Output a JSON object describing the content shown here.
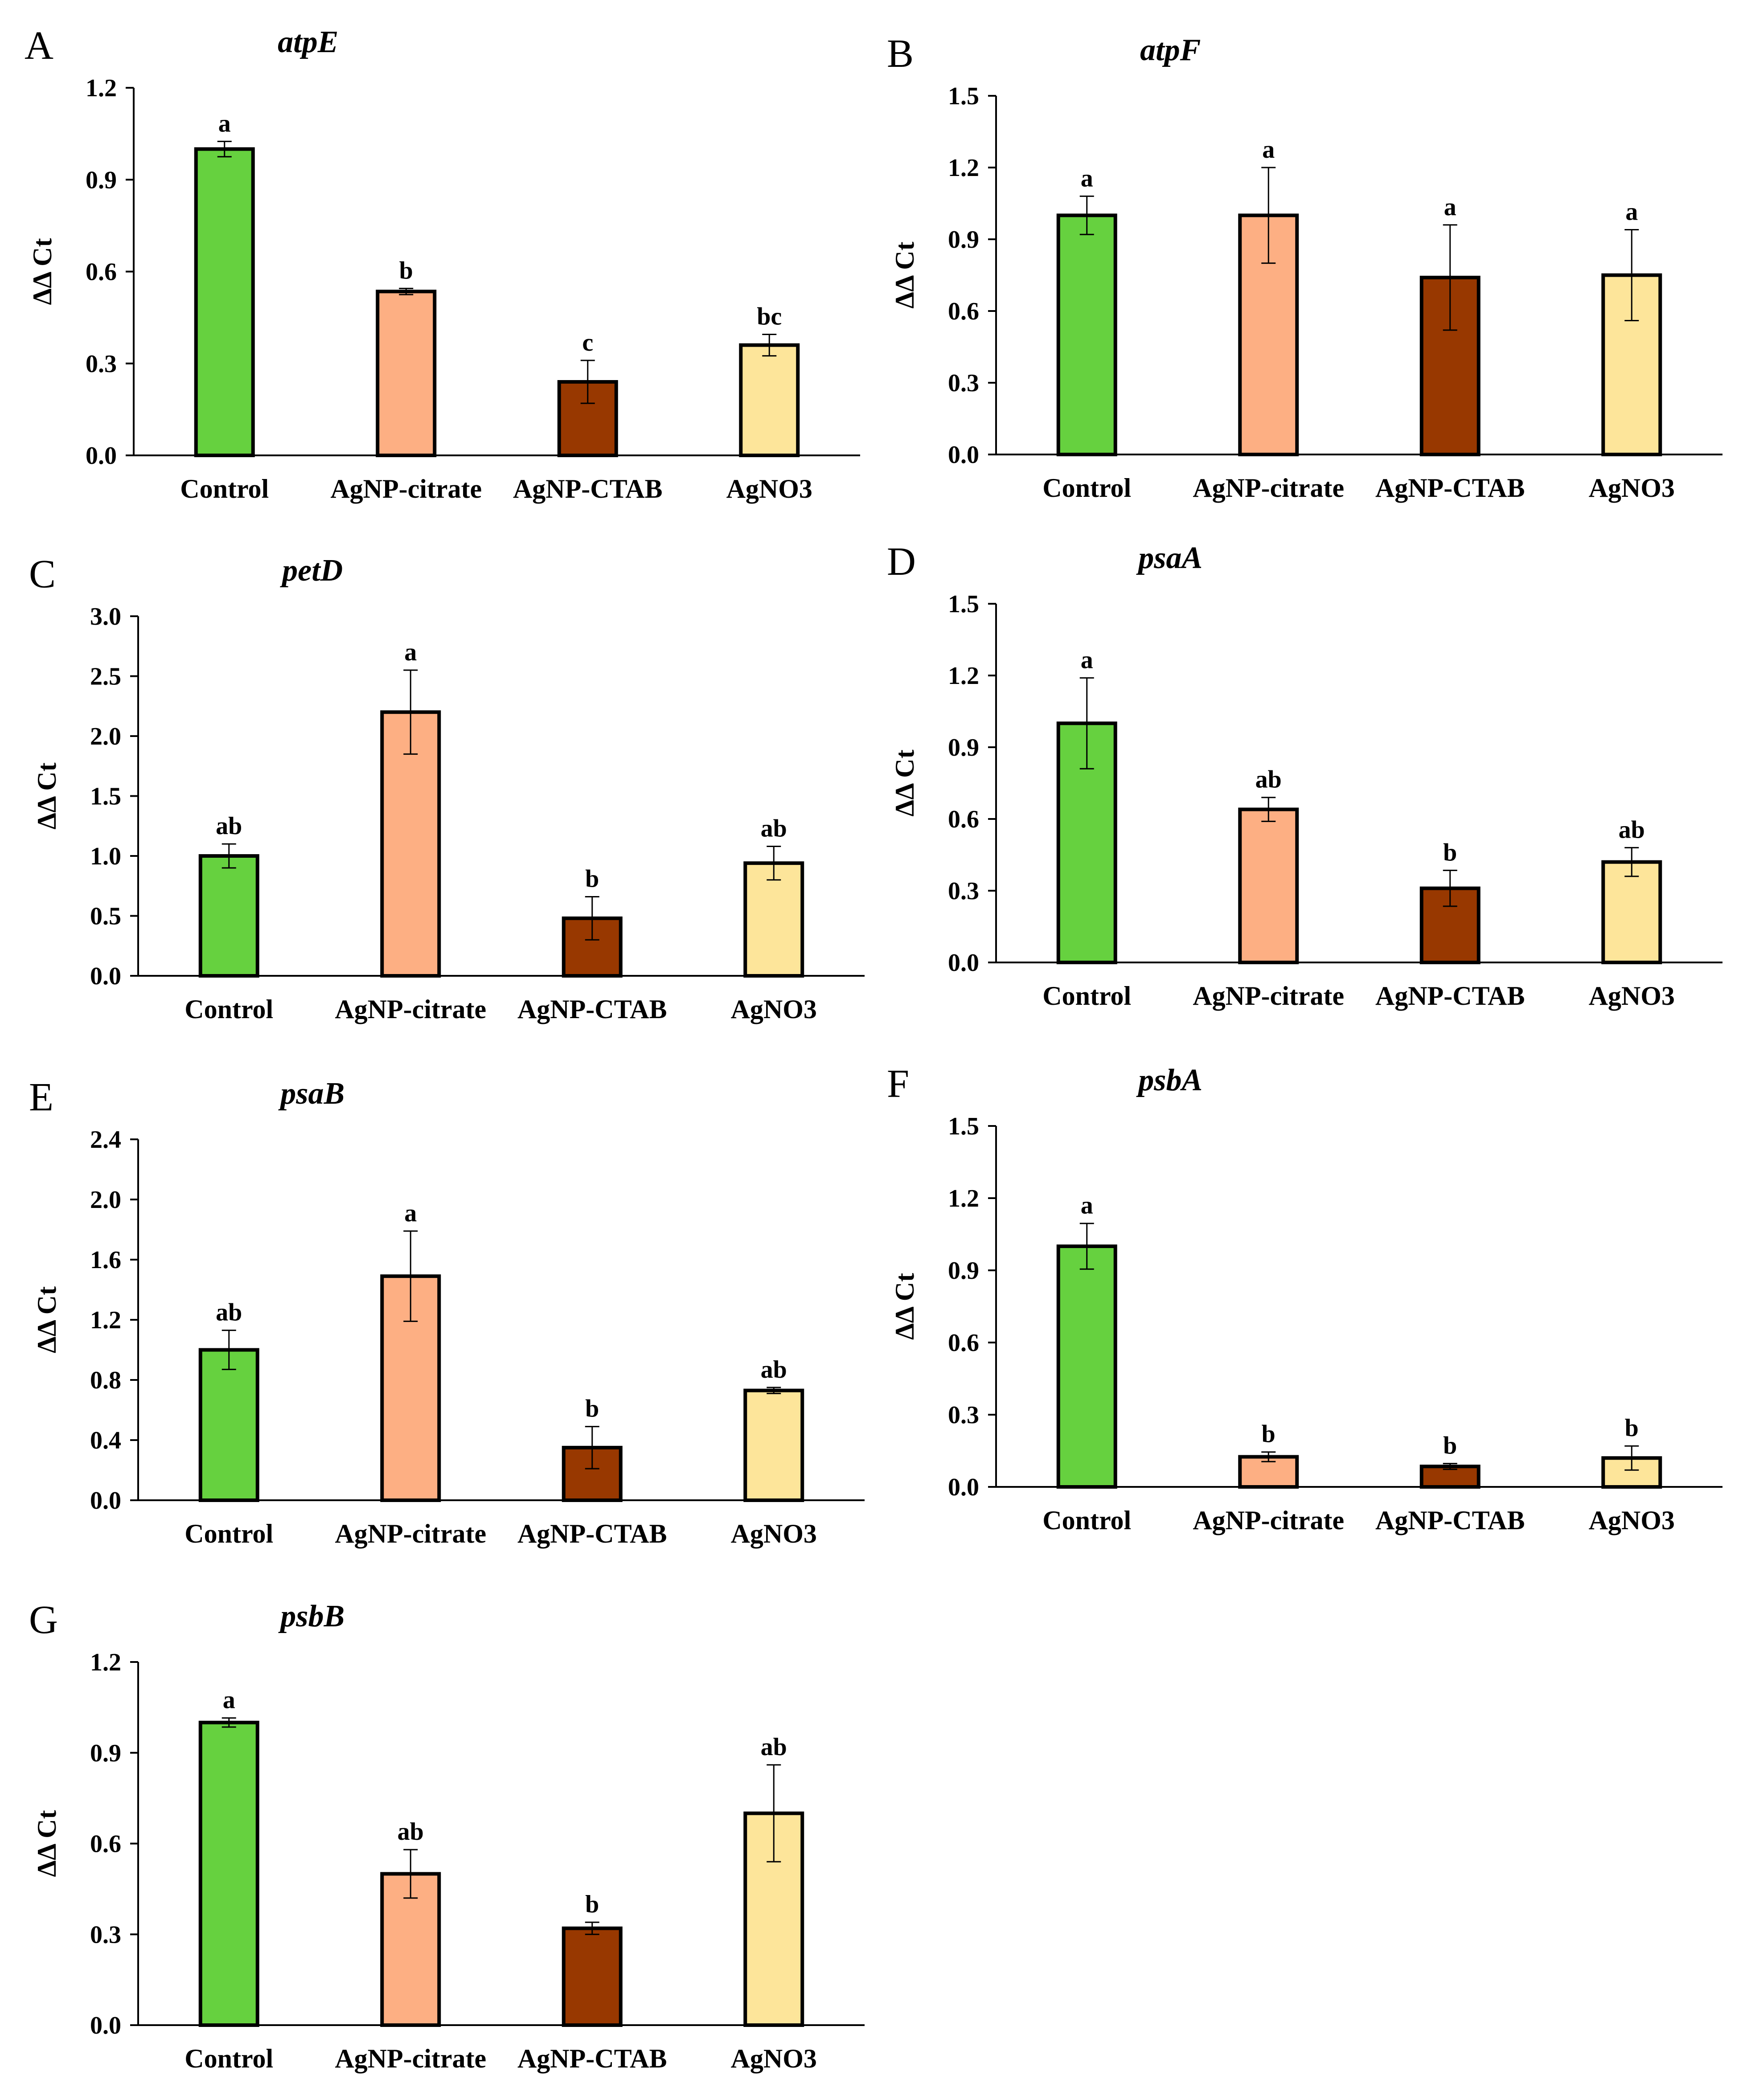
{
  "colors": {
    "Control": "#66d13f",
    "AgNP-citrate": "#fdaf83",
    "AgNP-CTAB": "#983800",
    "AgNO3": "#fde59a",
    "stroke": "#000000"
  },
  "chart_data": [
    {
      "panel": "A",
      "type": "bar",
      "title": "atpE",
      "ylabel": "ΔΔ Ct",
      "categories": [
        "Control",
        "AgNP-citrate",
        "AgNP-CTAB",
        "AgNO3"
      ],
      "values": [
        1.0,
        0.535,
        0.24,
        0.36
      ],
      "errors": [
        0.025,
        0.01,
        0.07,
        0.035
      ],
      "letters": [
        "a",
        "b",
        "c",
        "bc"
      ],
      "ylim": [
        0,
        1.2
      ],
      "yticks": [
        "0.0",
        "0.3",
        "0.6",
        "0.9",
        "1.2"
      ]
    },
    {
      "panel": "B",
      "type": "bar",
      "title": "atpF",
      "ylabel": "ΔΔ Ct",
      "categories": [
        "Control",
        "AgNP-citrate",
        "AgNP-CTAB",
        "AgNO3"
      ],
      "values": [
        1.0,
        1.0,
        0.74,
        0.75
      ],
      "errors": [
        0.08,
        0.2,
        0.22,
        0.19
      ],
      "letters": [
        "a",
        "a",
        "a",
        "a"
      ],
      "ylim": [
        0,
        1.5
      ],
      "yticks": [
        "0.0",
        "0.3",
        "0.6",
        "0.9",
        "1.2",
        "1.5"
      ]
    },
    {
      "panel": "C",
      "type": "bar",
      "title": "petD",
      "ylabel": "ΔΔ Ct",
      "categories": [
        "Control",
        "AgNP-citrate",
        "AgNP-CTAB",
        "AgNO3"
      ],
      "values": [
        1.0,
        2.2,
        0.48,
        0.94
      ],
      "errors": [
        0.1,
        0.35,
        0.18,
        0.14
      ],
      "letters": [
        "ab",
        "a",
        "b",
        "ab"
      ],
      "ylim": [
        0,
        3.0
      ],
      "yticks": [
        "0.0",
        "0.5",
        "1.0",
        "1.5",
        "2.0",
        "2.5",
        "3.0"
      ]
    },
    {
      "panel": "D",
      "type": "bar",
      "title": "psaA",
      "ylabel": "ΔΔ Ct",
      "categories": [
        "Control",
        "AgNP-citrate",
        "AgNP-CTAB",
        "AgNO3"
      ],
      "values": [
        1.0,
        0.64,
        0.31,
        0.42
      ],
      "errors": [
        0.19,
        0.05,
        0.075,
        0.06
      ],
      "letters": [
        "a",
        "ab",
        "b",
        "ab"
      ],
      "ylim": [
        0,
        1.5
      ],
      "yticks": [
        "0.0",
        "0.3",
        "0.6",
        "0.9",
        "1.2",
        "1.5"
      ]
    },
    {
      "panel": "E",
      "type": "bar",
      "title": "psaB",
      "ylabel": "ΔΔ Ct",
      "categories": [
        "Control",
        "AgNP-citrate",
        "AgNP-CTAB",
        "AgNO3"
      ],
      "values": [
        1.0,
        1.49,
        0.35,
        0.73
      ],
      "errors": [
        0.13,
        0.3,
        0.14,
        0.02
      ],
      "letters": [
        "ab",
        "a",
        "b",
        "ab"
      ],
      "ylim": [
        0,
        2.4
      ],
      "yticks": [
        "0.0",
        "0.4",
        "0.8",
        "1.2",
        "1.6",
        "2.0",
        "2.4"
      ]
    },
    {
      "panel": "F",
      "type": "bar",
      "title": "psbA",
      "ylabel": "ΔΔ Ct",
      "categories": [
        "Control",
        "AgNP-citrate",
        "AgNP-CTAB",
        "AgNO3"
      ],
      "values": [
        1.0,
        0.125,
        0.085,
        0.12
      ],
      "errors": [
        0.095,
        0.02,
        0.012,
        0.05
      ],
      "letters": [
        "a",
        "b",
        "b",
        "b"
      ],
      "ylim": [
        0,
        1.5
      ],
      "yticks": [
        "0.0",
        "0.3",
        "0.6",
        "0.9",
        "1.2",
        "1.5"
      ]
    },
    {
      "panel": "G",
      "type": "bar",
      "title": "psbB",
      "ylabel": "ΔΔ Ct",
      "categories": [
        "Control",
        "AgNP-citrate",
        "AgNP-CTAB",
        "AgNO3"
      ],
      "values": [
        1.0,
        0.5,
        0.32,
        0.7
      ],
      "errors": [
        0.015,
        0.08,
        0.02,
        0.16
      ],
      "letters": [
        "a",
        "ab",
        "b",
        "ab"
      ],
      "ylim": [
        0,
        1.2
      ],
      "yticks": [
        "0.0",
        "0.3",
        "0.6",
        "0.9",
        "1.2"
      ]
    }
  ]
}
